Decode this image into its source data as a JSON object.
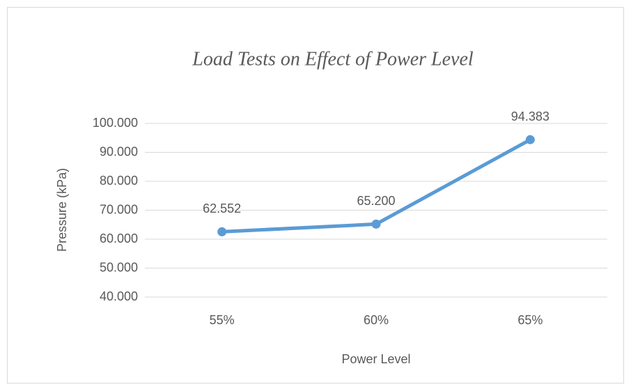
{
  "chart_data": {
    "type": "line",
    "title": "Load Tests on Effect of Power Level",
    "x_label": "Power Level",
    "y_label": "Pressure (kPa)",
    "categories": [
      "55%",
      "60%",
      "65%"
    ],
    "series": [
      {
        "name": "Pressure",
        "color": "#5b9bd5",
        "values": [
          62.552,
          65.2,
          94.383
        ],
        "value_labels": [
          "62.552",
          "65.200",
          "94.383"
        ]
      }
    ],
    "ylim": [
      40,
      100
    ],
    "yticks": [
      {
        "value": 40,
        "label": "40.000"
      },
      {
        "value": 50,
        "label": "50.000"
      },
      {
        "value": 60,
        "label": "60.000"
      },
      {
        "value": 70,
        "label": "70.000"
      },
      {
        "value": 80,
        "label": "80.000"
      },
      {
        "value": 90,
        "label": "90.000"
      },
      {
        "value": 100,
        "label": "100.000"
      }
    ],
    "grid": true
  }
}
